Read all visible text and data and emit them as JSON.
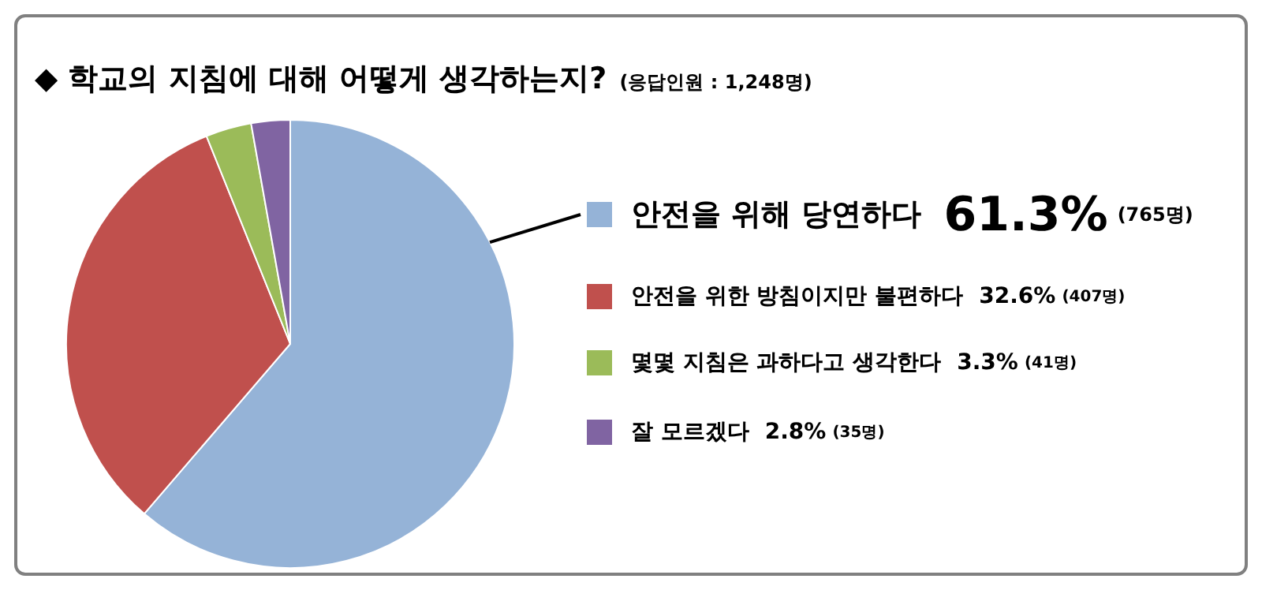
{
  "chart_data": {
    "type": "pie",
    "title": "◆ 학교의 지침에 대해 어떻게 생각하는지?",
    "subtitle": "(응답인원 : 1,248명)",
    "categories": [
      "안전을 위해 당연하다",
      "안전을 위한 방침이지만 불편하다",
      "몇몇 지침은 과하다고 생각한다",
      "잘 모르겠다"
    ],
    "values": [
      61.3,
      32.6,
      3.3,
      2.8
    ],
    "colors": [
      "#95b3d7",
      "#c0504d",
      "#9bbb59",
      "#8064a2"
    ],
    "value_labels": [
      "61.3% (765명)",
      "32.6% (407명)",
      "3.3% (41명)",
      "2.8% (35명)"
    ],
    "legend": "right"
  }
}
